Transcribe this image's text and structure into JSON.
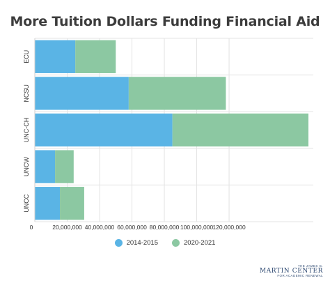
{
  "chart_data": {
    "type": "bar",
    "orientation": "horizontal",
    "stacked": true,
    "title": "More Tuition Dollars Funding Financial Aid",
    "categories": [
      "ECU",
      "NCSU",
      "UNC-CH",
      "UNCW",
      "UNCC"
    ],
    "series": [
      {
        "name": "2014-2015",
        "values": [
          25000000,
          58000000,
          85000000,
          12500000,
          15500000
        ]
      },
      {
        "name": "2020-2021",
        "values": [
          25000000,
          60000000,
          84000000,
          11500000,
          15000000
        ]
      }
    ],
    "xtick_labels": [
      "0",
      "20,000,000",
      "40,000,000",
      "60,000,000",
      "80,000,000",
      "100,000,000",
      "120,000,000"
    ],
    "xticks": [
      0,
      20000000,
      40000000,
      60000000,
      80000000,
      100000000,
      120000000
    ],
    "xlim": [
      0,
      172000000
    ],
    "xlabel": "",
    "ylabel": "",
    "grid": "vertical",
    "legend_position": "bottom-center",
    "colors": {
      "2014-2015": "#5ab4e5",
      "2020-2021": "#8cc8a2",
      "grid": "#e3e3e3",
      "axis_text": "#333333",
      "title": "#3c3c3c"
    }
  },
  "logo": {
    "line1": "THE JAMES G.",
    "line2": "MARTIN CENTER",
    "line3": "FOR ACADEMIC RENEWAL"
  }
}
